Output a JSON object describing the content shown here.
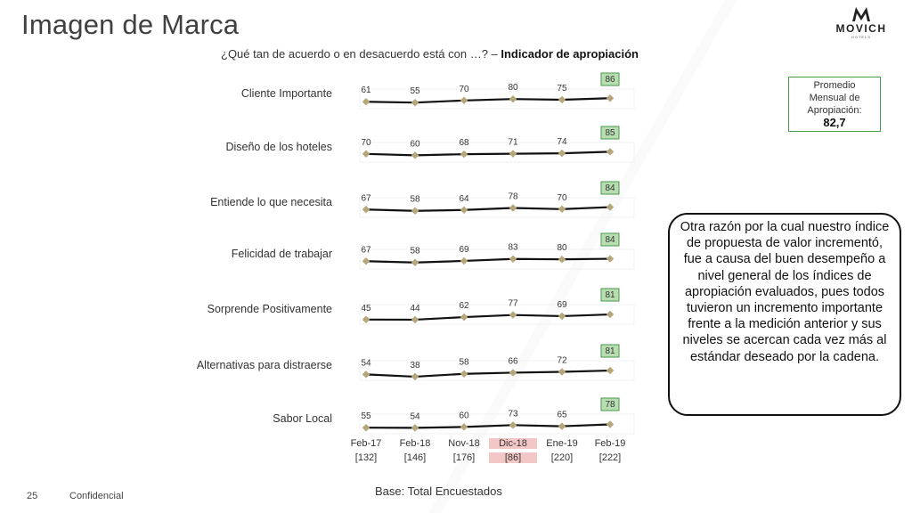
{
  "title": "Imagen de Marca",
  "logo": {
    "brand": "MOVICH",
    "sub": "HOTELS"
  },
  "question": {
    "text": "¿Qué tan de acuerdo o en desacuerdo está con …? – ",
    "bold": "Indicador de apropiación"
  },
  "avg_box": {
    "lines": [
      "Promedio",
      "Mensual de",
      "Apropiación:"
    ],
    "value": "82,7"
  },
  "callout": "Otra razón por la cual nuestro índice de propuesta de valor incrementó, fue a causa del buen desempeño a nivel general de los índices de apropiación evaluados, pues todos tuvieron un incremento importante frente a la medición anterior y sus niveles se acercan cada vez más al estándar deseado por la cadena.",
  "base": "Base: Total Encuestados",
  "footer": {
    "page": "25",
    "confidential": "Confidencial"
  },
  "colors": {
    "line": "#111111",
    "marker": "#b5a77a",
    "last_box_fill": "#b7ddb0",
    "last_box_border": "#4a9a4a",
    "highlight": "#f4c7c7"
  },
  "chart_data": {
    "type": "line",
    "categories": [
      "Feb-17",
      "Feb-18",
      "Nov-18",
      "Dic-18",
      "Ene-19",
      "Feb-19"
    ],
    "bases": [
      "[132]",
      "[146]",
      "[176]",
      "[86]",
      "[220]",
      "[222]"
    ],
    "highlight_category_index": 3,
    "series": [
      {
        "name": "Cliente Importante",
        "values": [
          61,
          55,
          70,
          80,
          75,
          86
        ]
      },
      {
        "name": "Diseño de los hoteles",
        "values": [
          70,
          60,
          68,
          71,
          74,
          85
        ]
      },
      {
        "name": "Entiende lo que necesita",
        "values": [
          67,
          58,
          64,
          78,
          70,
          84
        ]
      },
      {
        "name": "Felicidad de trabajar",
        "values": [
          67,
          58,
          69,
          83,
          80,
          84
        ]
      },
      {
        "name": "Sorprende Positivamente",
        "values": [
          45,
          44,
          62,
          77,
          69,
          81
        ]
      },
      {
        "name": "Alternativas para distraerse",
        "values": [
          54,
          38,
          58,
          66,
          72,
          81
        ]
      },
      {
        "name": "Sabor Local",
        "values": [
          55,
          54,
          60,
          73,
          65,
          78
        ]
      }
    ],
    "ylim": [
      0,
      100
    ],
    "legend": "none",
    "grid": false
  }
}
